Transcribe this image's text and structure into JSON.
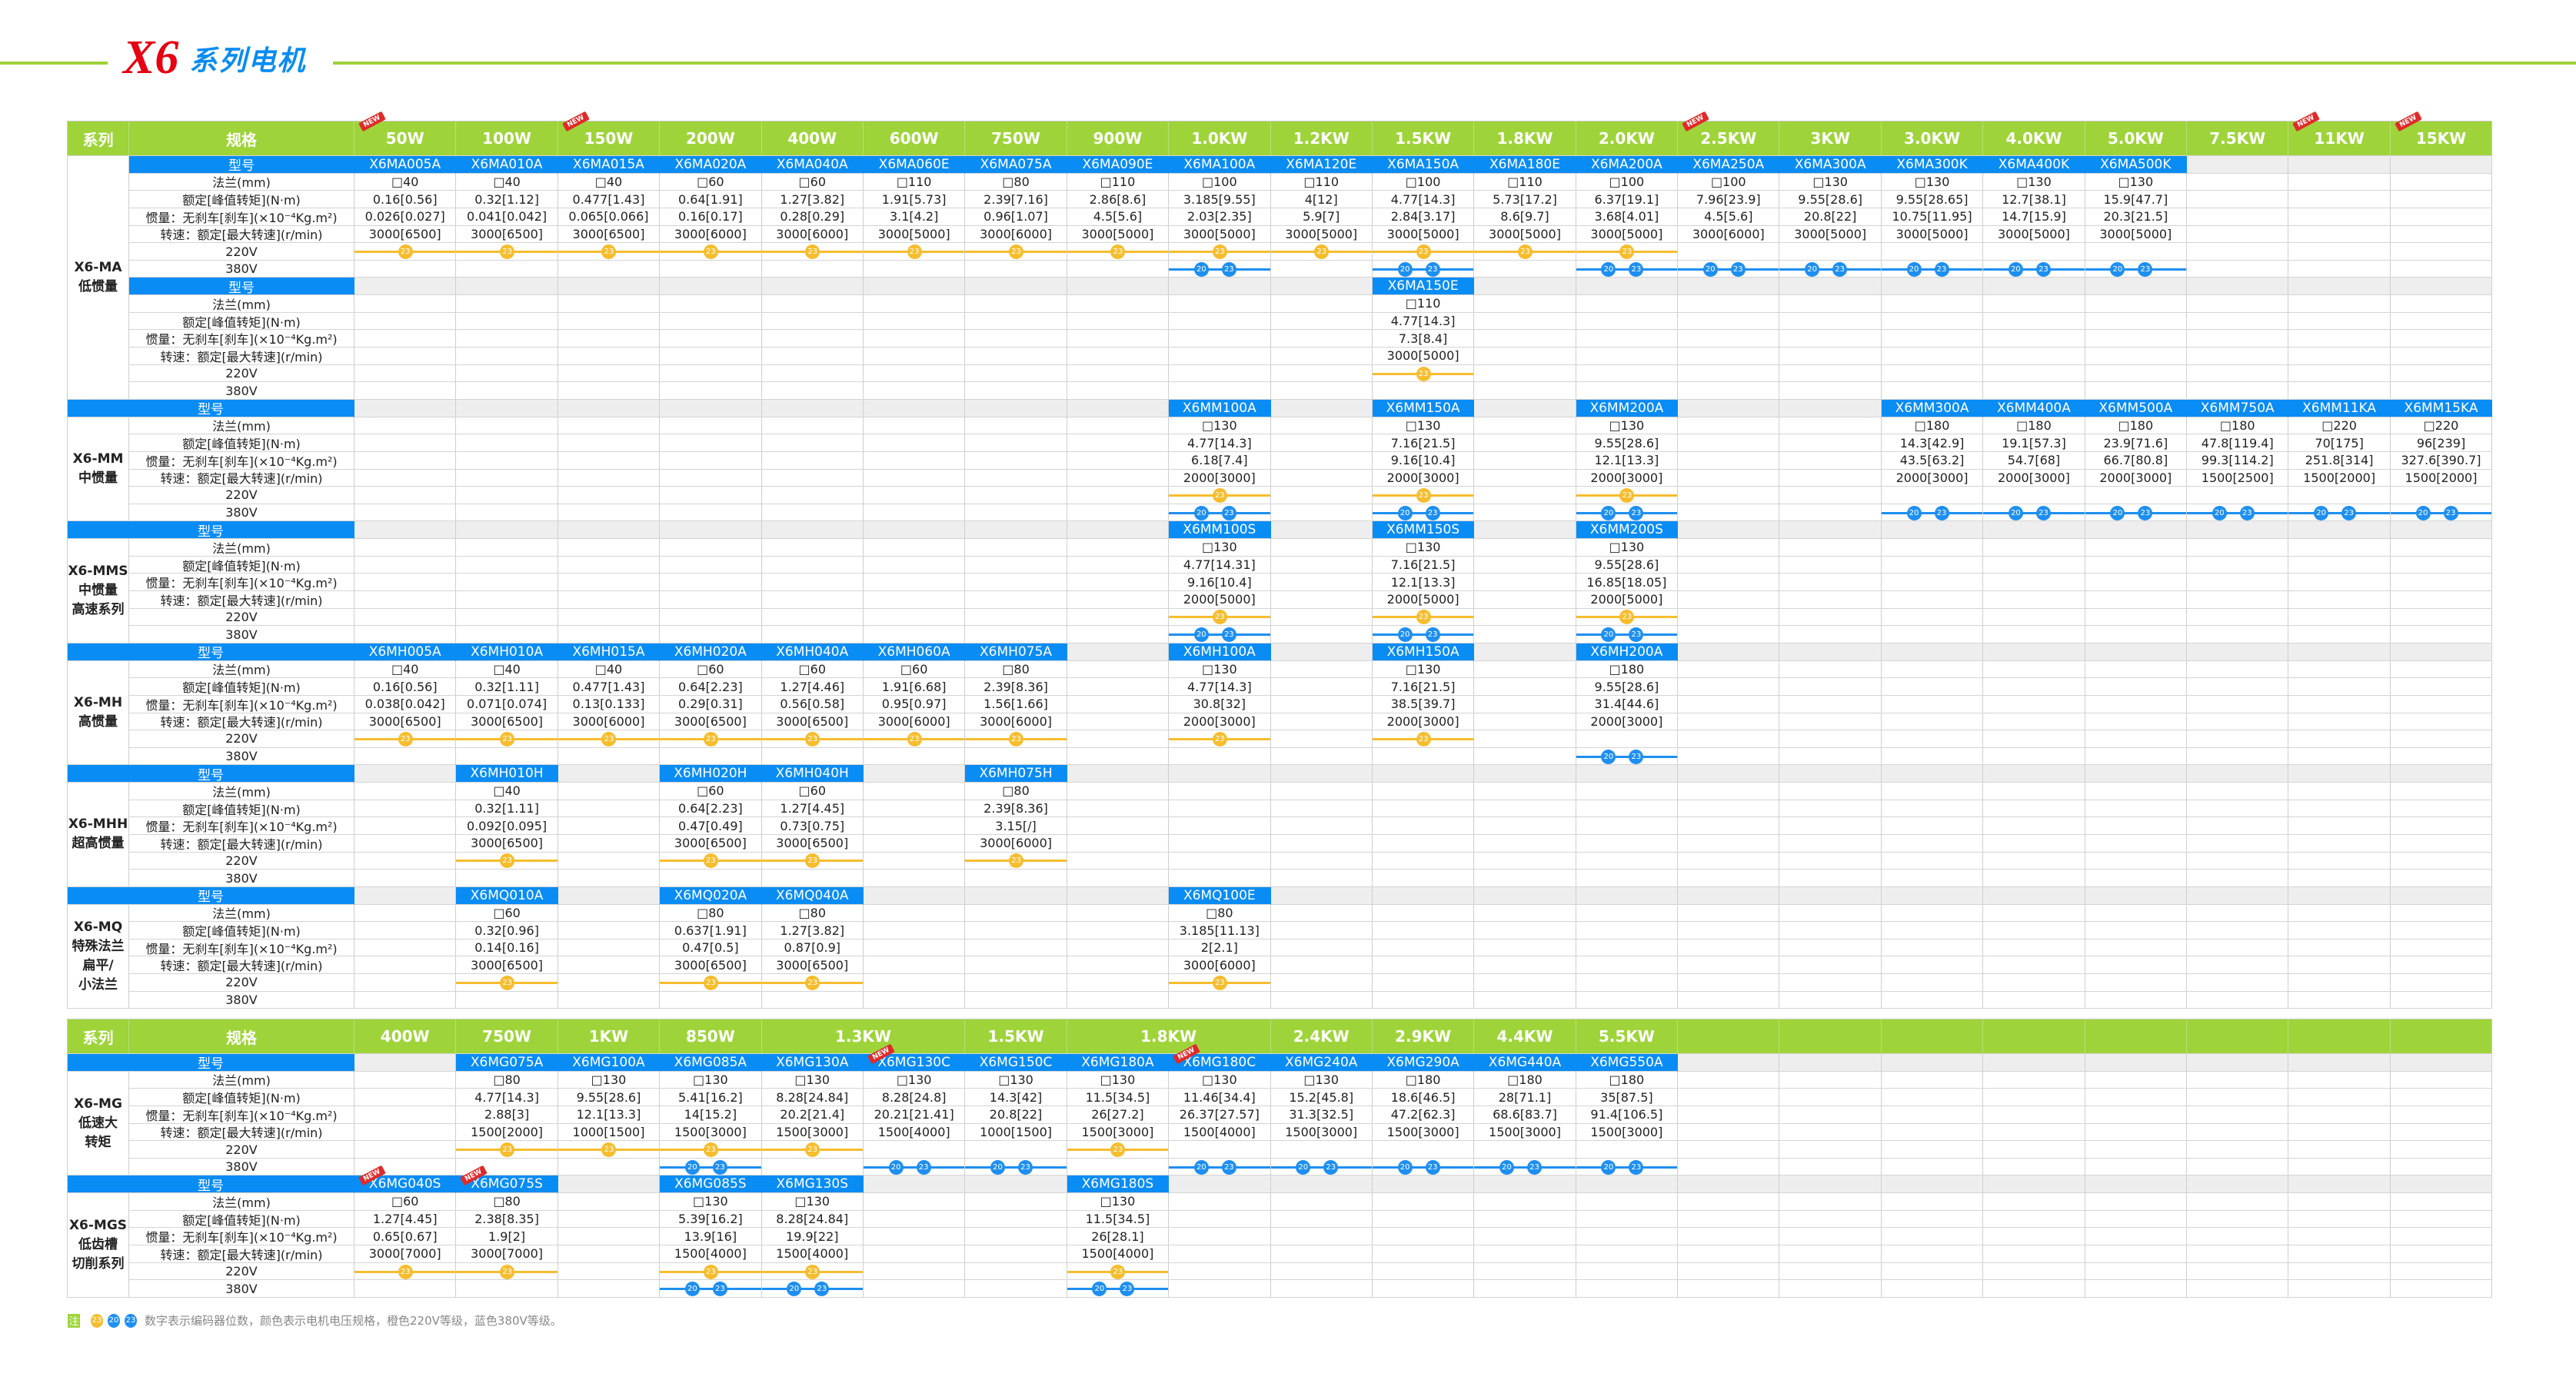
{
  "title": {
    "brand": "X6",
    "text": "系列电机"
  },
  "colors": {
    "header": "#9ed43a",
    "model": "#0a8cf5",
    "v220": "#f6bd2e",
    "v380": "#1e8ff0",
    "new_badge": "#e02a2a"
  },
  "row_labels": {
    "series": "系列",
    "spec": "规格",
    "model": "型号",
    "flange": "法兰(mm)",
    "torque": "额定[峰值转矩](N·m)",
    "inertia": "惯量：无刹车[刹车](×10⁻⁴Kg.m²)",
    "speed": "转速：额定[最大转速](r/min)",
    "v220": "220V",
    "v380": "380V"
  },
  "new_label": "NEW",
  "legend": {
    "note": "注",
    "enc220": [
      "23"
    ],
    "enc380": [
      "20",
      "23"
    ],
    "text": "数字表示编码器位数，颜色表示电机电压规格，橙色220V等级，蓝色380V等级。"
  },
  "tables": [
    {
      "columns": [
        {
          "label": "50W",
          "new": true
        },
        {
          "label": "100W"
        },
        {
          "label": "150W",
          "new": true
        },
        {
          "label": "200W"
        },
        {
          "label": "400W"
        },
        {
          "label": "600W"
        },
        {
          "label": "750W"
        },
        {
          "label": "900W"
        },
        {
          "label": "1.0KW"
        },
        {
          "label": "1.2KW"
        },
        {
          "label": "1.5KW"
        },
        {
          "label": "1.8KW"
        },
        {
          "label": "2.0KW"
        },
        {
          "label": "2.5KW",
          "new": true
        },
        {
          "label": "3KW"
        },
        {
          "label": "3.0KW"
        },
        {
          "label": "4.0KW"
        },
        {
          "label": "5.0KW"
        },
        {
          "label": "7.5KW"
        },
        {
          "label": "11KW",
          "new": true
        },
        {
          "label": "15KW",
          "new": true
        }
      ],
      "sections": [
        {
          "name": "X6-MA\n低惯量",
          "full_model_label": false,
          "groups": [
            {
              "0": {
                "m": "X6MA005A",
                "f": "□40",
                "t": "0.16[0.56]",
                "i": "0.026[0.027]",
                "s": "3000[6500]",
                "e220": true
              },
              "1": {
                "m": "X6MA010A",
                "f": "□40",
                "t": "0.32[1.12]",
                "i": "0.041[0.042]",
                "s": "3000[6500]",
                "e220": true
              },
              "2": {
                "m": "X6MA015A",
                "f": "□40",
                "t": "0.477[1.43]",
                "i": "0.065[0.066]",
                "s": "3000[6500]",
                "e220": true
              },
              "3": {
                "m": "X6MA020A",
                "f": "□60",
                "t": "0.64[1.91]",
                "i": "0.16[0.17]",
                "s": "3000[6000]",
                "e220": true
              },
              "4": {
                "m": "X6MA040A",
                "f": "□60",
                "t": "1.27[3.82]",
                "i": "0.28[0.29]",
                "s": "3000[6000]",
                "e220": true
              },
              "5": {
                "m": "X6MA060E",
                "f": "□110",
                "t": "1.91[5.73]",
                "i": "3.1[4.2]",
                "s": "3000[5000]",
                "e220": true
              },
              "6": {
                "m": "X6MA075A",
                "f": "□80",
                "t": "2.39[7.16]",
                "i": "0.96[1.07]",
                "s": "3000[6000]",
                "e220": true
              },
              "7": {
                "m": "X6MA090E",
                "f": "□110",
                "t": "2.86[8.6]",
                "i": "4.5[5.6]",
                "s": "3000[5000]",
                "e220": true
              },
              "8": {
                "m": "X6MA100A",
                "f": "□100",
                "t": "3.185[9.55]",
                "i": "2.03[2.35]",
                "s": "3000[5000]",
                "e220": true,
                "e380": true
              },
              "9": {
                "m": "X6MA120E",
                "f": "□110",
                "t": "4[12]",
                "i": "5.9[7]",
                "s": "3000[5000]",
                "e220": true
              },
              "10": {
                "m": "X6MA150A",
                "f": "□100",
                "t": "4.77[14.3]",
                "i": "2.84[3.17]",
                "s": "3000[5000]",
                "e220": true,
                "e380": true
              },
              "11": {
                "m": "X6MA180E",
                "f": "□110",
                "t": "5.73[17.2]",
                "i": "8.6[9.7]",
                "s": "3000[5000]",
                "e220": true
              },
              "12": {
                "m": "X6MA200A",
                "f": "□100",
                "t": "6.37[19.1]",
                "i": "3.68[4.01]",
                "s": "3000[5000]",
                "e220": true,
                "e380": true
              },
              "13": {
                "m": "X6MA250A",
                "f": "□100",
                "t": "7.96[23.9]",
                "i": "4.5[5.6]",
                "s": "3000[6000]",
                "e380": true
              },
              "14": {
                "m": "X6MA300A",
                "f": "□130",
                "t": "9.55[28.6]",
                "i": "20.8[22]",
                "s": "3000[5000]",
                "e380": true
              },
              "15": {
                "m": "X6MA300K",
                "f": "□130",
                "t": "9.55[28.65]",
                "i": "10.75[11.95]",
                "s": "3000[5000]",
                "e380": true
              },
              "16": {
                "m": "X6MA400K",
                "f": "□130",
                "t": "12.7[38.1]",
                "i": "14.7[15.9]",
                "s": "3000[5000]",
                "e380": true
              },
              "17": {
                "m": "X6MA500K",
                "f": "□130",
                "t": "15.9[47.7]",
                "i": "20.3[21.5]",
                "s": "3000[5000]",
                "e380": true
              }
            },
            {
              "10": {
                "m": "X6MA150E",
                "f": "□110",
                "t": "4.77[14.3]",
                "i": "7.3[8.4]",
                "s": "3000[5000]",
                "e220": true
              }
            }
          ]
        },
        {
          "name": "X6-MM\n中惯量",
          "full_model_label": true,
          "groups": [
            {
              "8": {
                "m": "X6MM100A",
                "f": "□130",
                "t": "4.77[14.3]",
                "i": "6.18[7.4]",
                "s": "2000[3000]",
                "e220": true,
                "e380": true
              },
              "10": {
                "m": "X6MM150A",
                "f": "□130",
                "t": "7.16[21.5]",
                "i": "9.16[10.4]",
                "s": "2000[3000]",
                "e220": true,
                "e380": true
              },
              "12": {
                "m": "X6MM200A",
                "f": "□130",
                "t": "9.55[28.6]",
                "i": "12.1[13.3]",
                "s": "2000[3000]",
                "e220": true,
                "e380": true
              },
              "15": {
                "m": "X6MM300A",
                "f": "□180",
                "t": "14.3[42.9]",
                "i": "43.5[63.2]",
                "s": "2000[3000]",
                "e380": true
              },
              "16": {
                "m": "X6MM400A",
                "f": "□180",
                "t": "19.1[57.3]",
                "i": "54.7[68]",
                "s": "2000[3000]",
                "e380": true
              },
              "17": {
                "m": "X6MM500A",
                "f": "□180",
                "t": "23.9[71.6]",
                "i": "66.7[80.8]",
                "s": "2000[3000]",
                "e380": true
              },
              "18": {
                "m": "X6MM750A",
                "f": "□180",
                "t": "47.8[119.4]",
                "i": "99.3[114.2]",
                "s": "1500[2500]",
                "e380": true
              },
              "19": {
                "m": "X6MM11KA",
                "f": "□220",
                "t": "70[175]",
                "i": "251.8[314]",
                "s": "1500[2000]",
                "e380": true
              },
              "20": {
                "m": "X6MM15KA",
                "f": "□220",
                "t": "96[239]",
                "i": "327.6[390.7]",
                "s": "1500[2000]",
                "e380": true
              }
            }
          ]
        },
        {
          "name": "X6-MMS\n中惯量\n高速系列",
          "full_model_label": true,
          "groups": [
            {
              "8": {
                "m": "X6MM100S",
                "f": "□130",
                "t": "4.77[14.31]",
                "i": "9.16[10.4]",
                "s": "2000[5000]",
                "e220": true,
                "e380": true
              },
              "10": {
                "m": "X6MM150S",
                "f": "□130",
                "t": "7.16[21.5]",
                "i": "12.1[13.3]",
                "s": "2000[5000]",
                "e220": true,
                "e380": true
              },
              "12": {
                "m": "X6MM200S",
                "f": "□130",
                "t": "9.55[28.6]",
                "i": "16.85[18.05]",
                "s": "2000[5000]",
                "e220": true,
                "e380": true
              }
            }
          ]
        },
        {
          "name": "X6-MH\n高惯量",
          "full_model_label": true,
          "groups": [
            {
              "0": {
                "m": "X6MH005A",
                "f": "□40",
                "t": "0.16[0.56]",
                "i": "0.038[0.042]",
                "s": "3000[6500]",
                "e220": true
              },
              "1": {
                "m": "X6MH010A",
                "f": "□40",
                "t": "0.32[1.11]",
                "i": "0.071[0.074]",
                "s": "3000[6500]",
                "e220": true
              },
              "2": {
                "m": "X6MH015A",
                "f": "□40",
                "t": "0.477[1.43]",
                "i": "0.13[0.133]",
                "s": "3000[6000]",
                "e220": true
              },
              "3": {
                "m": "X6MH020A",
                "f": "□60",
                "t": "0.64[2.23]",
                "i": "0.29[0.31]",
                "s": "3000[6500]",
                "e220": true
              },
              "4": {
                "m": "X6MH040A",
                "f": "□60",
                "t": "1.27[4.46]",
                "i": "0.56[0.58]",
                "s": "3000[6500]",
                "e220": true
              },
              "5": {
                "m": "X6MH060A",
                "f": "□60",
                "t": "1.91[6.68]",
                "i": "0.95[0.97]",
                "s": "3000[6000]",
                "e220": true
              },
              "6": {
                "m": "X6MH075A",
                "f": "□80",
                "t": "2.39[8.36]",
                "i": "1.56[1.66]",
                "s": "3000[6000]",
                "e220": true
              },
              "8": {
                "m": "X6MH100A",
                "f": "□130",
                "t": "4.77[14.3]",
                "i": "30.8[32]",
                "s": "2000[3000]",
                "e220": true
              },
              "10": {
                "m": "X6MH150A",
                "f": "□130",
                "t": "7.16[21.5]",
                "i": "38.5[39.7]",
                "s": "2000[3000]",
                "e220": true
              },
              "12": {
                "m": "X6MH200A",
                "f": "□180",
                "t": "9.55[28.6]",
                "i": "31.4[44.6]",
                "s": "2000[3000]",
                "e380": true
              }
            }
          ]
        },
        {
          "name": "X6-MHH\n超高惯量",
          "full_model_label": true,
          "groups": [
            {
              "1": {
                "m": "X6MH010H",
                "f": "□40",
                "t": "0.32[1.11]",
                "i": "0.092[0.095]",
                "s": "3000[6500]",
                "e220": true
              },
              "3": {
                "m": "X6MH020H",
                "f": "□60",
                "t": "0.64[2.23]",
                "i": "0.47[0.49]",
                "s": "3000[6500]",
                "e220": true
              },
              "4": {
                "m": "X6MH040H",
                "f": "□60",
                "t": "1.27[4.45]",
                "i": "0.73[0.75]",
                "s": "3000[6500]",
                "e220": true
              },
              "6": {
                "m": "X6MH075H",
                "f": "□80",
                "t": "2.39[8.36]",
                "i": "3.15[/]",
                "s": "3000[6000]",
                "e220": true
              }
            }
          ]
        },
        {
          "name": "X6-MQ\n特殊法兰\n扁平/\n小法兰",
          "full_model_label": true,
          "groups": [
            {
              "1": {
                "m": "X6MQ010A",
                "f": "□60",
                "t": "0.32[0.96]",
                "i": "0.14[0.16]",
                "s": "3000[6500]",
                "e220": true
              },
              "3": {
                "m": "X6MQ020A",
                "f": "□80",
                "t": "0.637[1.91]",
                "i": "0.47[0.5]",
                "s": "3000[6500]",
                "e220": true
              },
              "4": {
                "m": "X6MQ040A",
                "f": "□80",
                "t": "1.27[3.82]",
                "i": "0.87[0.9]",
                "s": "3000[6500]",
                "e220": true
              },
              "8": {
                "m": "X6MQ100E",
                "f": "□80",
                "t": "3.185[11.13]",
                "i": "2[2.1]",
                "s": "3000[6000]",
                "e220": true
              }
            }
          ]
        }
      ]
    },
    {
      "columns": [
        {
          "label": "400W"
        },
        {
          "label": "750W"
        },
        {
          "label": "1KW"
        },
        {
          "label": "850W"
        },
        {
          "label": "1.3KW",
          "span": 2
        },
        {
          "label": "1.5KW"
        },
        {
          "label": "1.8KW",
          "span": 2
        },
        {
          "label": "2.4KW"
        },
        {
          "label": "2.9KW"
        },
        {
          "label": "4.4KW"
        },
        {
          "label": "5.5KW"
        },
        {
          "label": ""
        },
        {
          "label": ""
        },
        {
          "label": ""
        },
        {
          "label": ""
        },
        {
          "label": ""
        },
        {
          "label": ""
        },
        {
          "label": ""
        },
        {
          "label": ""
        }
      ],
      "sections": [
        {
          "name": "X6-MG\n低速大\n转矩",
          "full_model_label": true,
          "groups": [
            {
              "1": {
                "m": "X6MG075A",
                "f": "□80",
                "t": "4.77[14.3]",
                "i": "2.88[3]",
                "s": "1500[2000]",
                "e220": true
              },
              "2": {
                "m": "X6MG100A",
                "f": "□130",
                "t": "9.55[28.6]",
                "i": "12.1[13.3]",
                "s": "1000[1500]",
                "e220": true
              },
              "3": {
                "m": "X6MG085A",
                "f": "□130",
                "t": "5.41[16.2]",
                "i": "14[15.2]",
                "s": "1500[3000]",
                "e220": true,
                "e380": true
              },
              "4": {
                "m": "X6MG130A",
                "f": "□130",
                "t": "8.28[24.84]",
                "i": "20.2[21.4]",
                "s": "1500[3000]",
                "e220": true
              },
              "5": {
                "m": "X6MG130C",
                "f": "□130",
                "t": "8.28[24.8]",
                "i": "20.21[21.41]",
                "s": "1500[4000]",
                "e380": true,
                "new": true
              },
              "6": {
                "m": "X6MG150C",
                "f": "□130",
                "t": "14.3[42]",
                "i": "20.8[22]",
                "s": "1000[1500]",
                "e380": true
              },
              "7": {
                "m": "X6MG180A",
                "f": "□130",
                "t": "11.5[34.5]",
                "i": "26[27.2]",
                "s": "1500[3000]",
                "e220": true
              },
              "8": {
                "m": "X6MG180C",
                "f": "□130",
                "t": "11.46[34.4]",
                "i": "26.37[27.57]",
                "s": "1500[4000]",
                "e380": true,
                "new": true
              },
              "9": {
                "m": "X6MG240A",
                "f": "□130",
                "t": "15.2[45.8]",
                "i": "31.3[32.5]",
                "s": "1500[3000]",
                "e380": true
              },
              "10": {
                "m": "X6MG290A",
                "f": "□180",
                "t": "18.6[46.5]",
                "i": "47.2[62.3]",
                "s": "1500[3000]",
                "e380": true
              },
              "11": {
                "m": "X6MG440A",
                "f": "□180",
                "t": "28[71.1]",
                "i": "68.6[83.7]",
                "s": "1500[3000]",
                "e380": true
              },
              "12": {
                "m": "X6MG550A",
                "f": "□180",
                "t": "35[87.5]",
                "i": "91.4[106.5]",
                "s": "1500[3000]",
                "e380": true
              }
            }
          ]
        },
        {
          "name": "X6-MGS\n低齿槽\n切削系列",
          "full_model_label": true,
          "groups": [
            {
              "0": {
                "m": "X6MG040S",
                "f": "□60",
                "t": "1.27[4.45]",
                "i": "0.65[0.67]",
                "s": "3000[7000]",
                "e220": true,
                "new": true
              },
              "1": {
                "m": "X6MG075S",
                "f": "□80",
                "t": "2.38[8.35]",
                "i": "1.9[2]",
                "s": "3000[7000]",
                "e220": true,
                "new": true
              },
              "3": {
                "m": "X6MG085S",
                "f": "□130",
                "t": "5.39[16.2]",
                "i": "13.9[16]",
                "s": "1500[4000]",
                "e220": true,
                "e380": true
              },
              "4": {
                "m": "X6MG130S",
                "f": "□130",
                "t": "8.28[24.84]",
                "i": "19.9[22]",
                "s": "1500[4000]",
                "e220": true,
                "e380": true
              },
              "7": {
                "m": "X6MG180S",
                "f": "□130",
                "t": "11.5[34.5]",
                "i": "26[28.1]",
                "s": "1500[4000]",
                "e220": true,
                "e380": true
              }
            }
          ]
        }
      ]
    }
  ]
}
